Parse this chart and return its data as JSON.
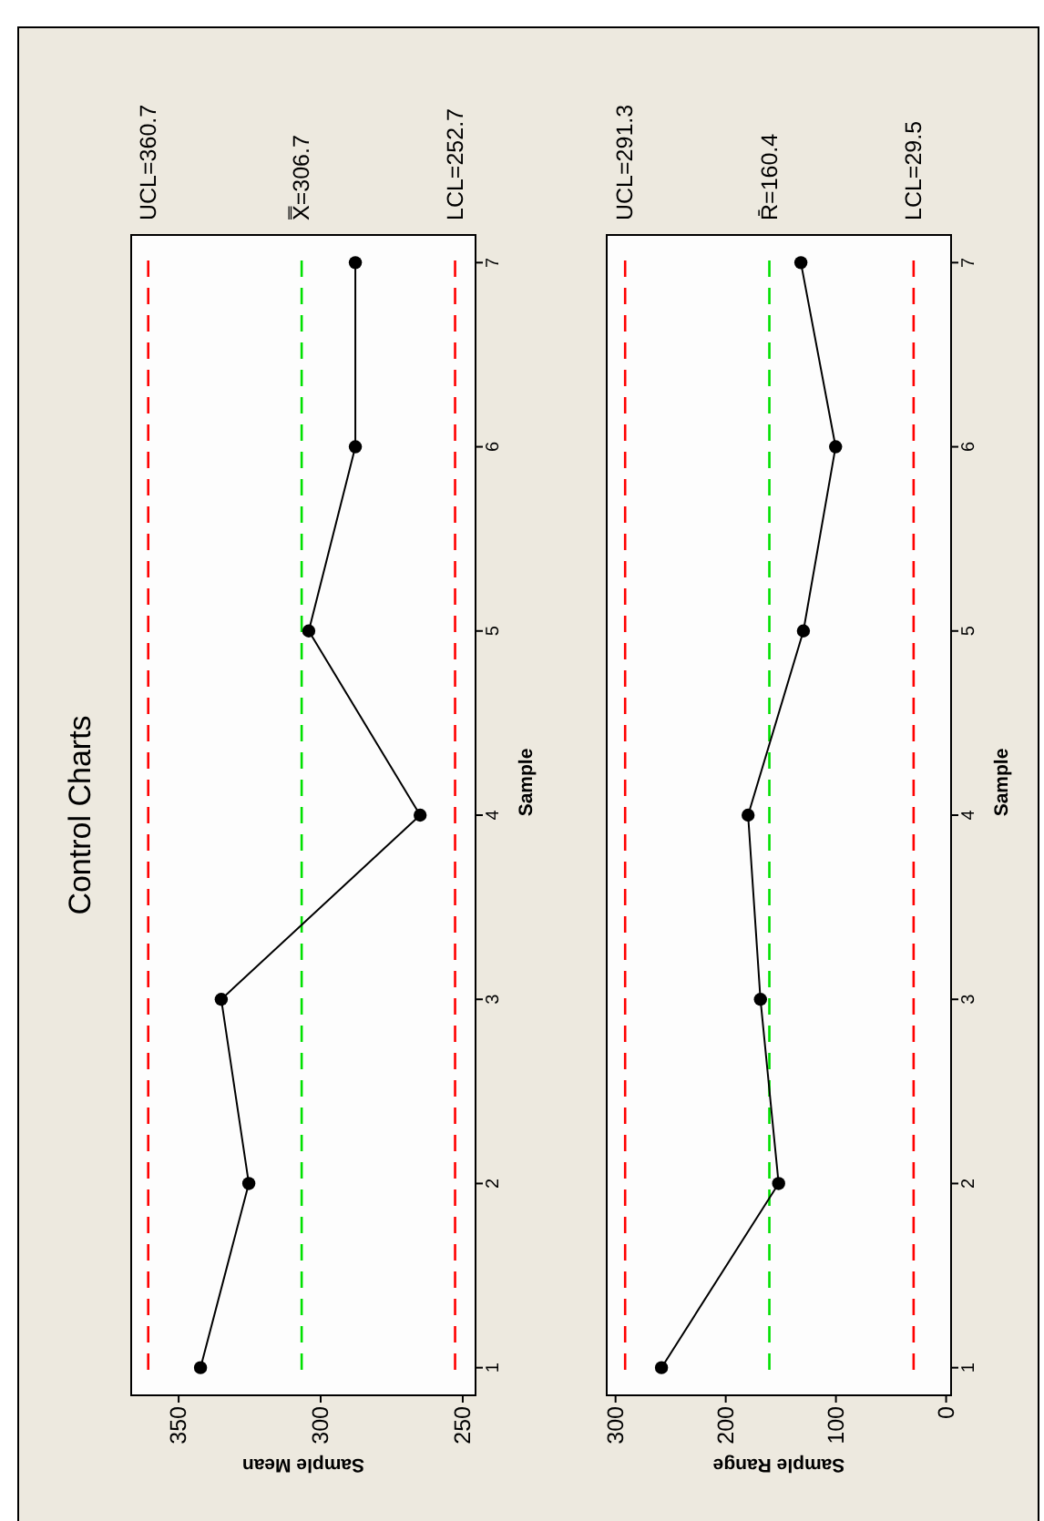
{
  "chart_data": [
    {
      "type": "line",
      "title": "Control Charts",
      "xlabel": "Sample Mean",
      "ylabel": "Sample",
      "x": [
        342.3,
        325.3,
        335,
        265,
        304.2,
        287.8,
        287.8
      ],
      "values": [
        1,
        2,
        3,
        4,
        5,
        6,
        7
      ],
      "color": "#000000",
      "marker": "circle",
      "xlim": [
        366.7,
        245.5
      ],
      "xticks": [
        250,
        300,
        350
      ],
      "ylim": [
        0.85,
        7.15
      ],
      "yticks": [
        1,
        2,
        3,
        4,
        5,
        6,
        7
      ],
      "grid": false,
      "ref_lines": [
        {
          "axis": "x",
          "value": 360.7,
          "label": "UCL=360.7",
          "color": "#ff0000",
          "line_style": "dashed"
        },
        {
          "axis": "x",
          "value": 306.7,
          "label": "X̿=306.7",
          "color": "#00e000",
          "line_style": "dashed"
        },
        {
          "axis": "x",
          "value": 252.7,
          "label": "LCL=252.7",
          "color": "#ff0000",
          "line_style": "dashed"
        }
      ]
    },
    {
      "type": "line",
      "xlabel": "Sample Range",
      "ylabel": "Sample",
      "x": [
        258.3,
        152,
        168.5,
        179.7,
        129.5,
        100.3,
        131.8
      ],
      "values": [
        1,
        2,
        3,
        4,
        5,
        6,
        7
      ],
      "color": "#000000",
      "marker": "circle",
      "xlim": [
        308,
        -4.5
      ],
      "xticks": [
        0,
        100,
        200,
        300
      ],
      "ylim": [
        0.85,
        7.15
      ],
      "yticks": [
        1,
        2,
        3,
        4,
        5,
        6,
        7
      ],
      "grid": false,
      "ref_lines": [
        {
          "axis": "x",
          "value": 291.3,
          "label": "UCL=291.3",
          "color": "#ff0000",
          "line_style": "dashed"
        },
        {
          "axis": "x",
          "value": 160.4,
          "label": "R̄=160.4",
          "color": "#00e000",
          "line_style": "dashed"
        },
        {
          "axis": "x",
          "value": 29.5,
          "label": "LCL=29.5",
          "color": "#ff0000",
          "line_style": "dashed"
        }
      ]
    }
  ]
}
